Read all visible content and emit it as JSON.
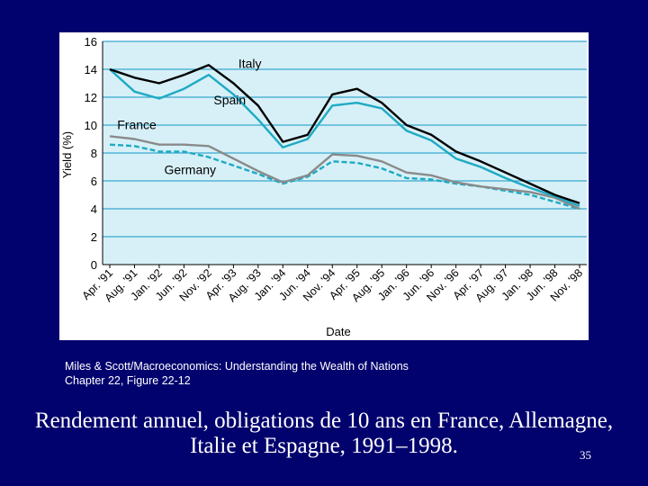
{
  "slide": {
    "credit_line_1": "Miles & Scott/Macroeconomics: Understanding the Wealth of Nations",
    "credit_line_2": "Chapter 22, Figure 22-12",
    "caption_line_1": "Rendement annuel, obligations de 10 ans en France, Allemagne,",
    "caption_line_2": "Italie et Espagne, 1991–1998.",
    "slide_number": "35",
    "background_color": "#02026e"
  },
  "chart_data": {
    "type": "line",
    "title": "",
    "xlabel": "Date",
    "ylabel": "Yield (%)",
    "ylim": [
      0,
      16
    ],
    "yticks": [
      0,
      2,
      4,
      6,
      8,
      10,
      12,
      14,
      16
    ],
    "grid": "horizontal",
    "legend": "inline labels",
    "plot_background": "#d7f0f7",
    "grid_color": "#3aa8d0",
    "x": [
      "Apr. '91",
      "Aug. '91",
      "Jan. '92",
      "Jun. '92",
      "Nov. '92",
      "Apr. '93",
      "Aug. '93",
      "Jan. '94",
      "Jun. '94",
      "Nov. '94",
      "Apr. '95",
      "Aug. '95",
      "Jan. '96",
      "Jun. '96",
      "Nov. '96",
      "Apr. '97",
      "Aug. '97",
      "Jan. '98",
      "Jun. '98",
      "Nov. '98"
    ],
    "series": [
      {
        "name": "Italy",
        "color": "#000000",
        "dash": "solid",
        "values": [
          14.0,
          13.4,
          13.0,
          13.6,
          14.3,
          13.0,
          11.4,
          8.8,
          9.3,
          12.2,
          12.6,
          11.6,
          10.0,
          9.3,
          8.1,
          7.4,
          6.6,
          5.8,
          5.0,
          4.4
        ]
      },
      {
        "name": "Spain",
        "color": "#1eaac4",
        "dash": "solid",
        "values": [
          14.0,
          12.4,
          11.9,
          12.6,
          13.6,
          12.2,
          10.4,
          8.4,
          9.0,
          11.4,
          11.6,
          11.2,
          9.6,
          8.9,
          7.6,
          7.0,
          6.2,
          5.5,
          4.9,
          4.2
        ]
      },
      {
        "name": "France",
        "color": "#8a8a8a",
        "dash": "solid",
        "values": [
          9.2,
          9.0,
          8.6,
          8.6,
          8.5,
          7.6,
          6.7,
          5.9,
          6.4,
          7.9,
          7.8,
          7.4,
          6.6,
          6.4,
          5.9,
          5.6,
          5.4,
          5.2,
          4.8,
          4.0
        ]
      },
      {
        "name": "Germany",
        "color": "#1eaac4",
        "dash": "dashed",
        "values": [
          8.6,
          8.5,
          8.1,
          8.1,
          7.7,
          7.1,
          6.5,
          5.8,
          6.3,
          7.4,
          7.3,
          6.9,
          6.2,
          6.1,
          5.8,
          5.6,
          5.3,
          5.0,
          4.5,
          4.0
        ]
      }
    ]
  }
}
